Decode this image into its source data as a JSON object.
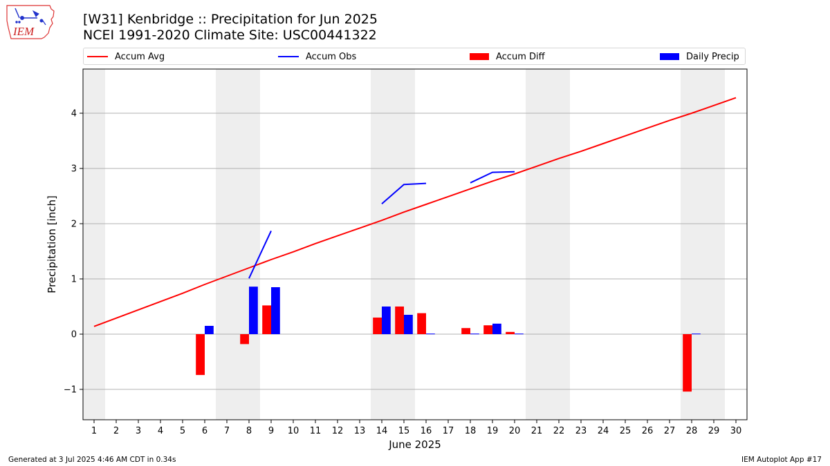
{
  "header": {
    "title_line1": "[W31] Kenbridge :: Precipitation for Jun 2025",
    "title_line2": "NCEI 1991-2020 Climate Site: USC00441322"
  },
  "logo": {
    "text": "IEM"
  },
  "legend": {
    "accum_avg": "Accum Avg",
    "accum_obs": "Accum Obs",
    "accum_diff": "Accum Diff",
    "daily_precip": "Daily Precip"
  },
  "footer": {
    "left": "Generated at 3 Jul 2025 4:46 AM CDT in 0.34s",
    "right": "IEM Autoplot App #17"
  },
  "colors": {
    "avg": "#ff0000",
    "obs": "#0000ff",
    "diff": "#ff0000",
    "daily": "#0000ff",
    "weekend_shade": "#eeeeee",
    "grid": "#b0b0b0"
  },
  "chart_data": {
    "type": "bar",
    "xlabel": "June 2025",
    "ylabel": "Precipitation [inch]",
    "xlim": [
      0.5,
      30.5
    ],
    "ylim": [
      -1.55,
      4.8
    ],
    "yticks": [
      -1,
      0,
      1,
      2,
      3,
      4
    ],
    "ytick_labels": [
      "−1",
      "0",
      "1",
      "2",
      "3",
      "4"
    ],
    "days": [
      1,
      2,
      3,
      4,
      5,
      6,
      7,
      8,
      9,
      10,
      11,
      12,
      13,
      14,
      15,
      16,
      17,
      18,
      19,
      20,
      21,
      22,
      23,
      24,
      25,
      26,
      27,
      28,
      29,
      30
    ],
    "weekend_days": [
      1,
      7,
      8,
      14,
      15,
      21,
      22,
      28,
      29
    ],
    "accum_avg": [
      0.14,
      0.29,
      0.44,
      0.59,
      0.74,
      0.9,
      1.05,
      1.2,
      1.35,
      1.49,
      1.64,
      1.78,
      1.92,
      2.06,
      2.21,
      2.35,
      2.49,
      2.63,
      2.77,
      2.9,
      3.04,
      3.18,
      3.31,
      3.45,
      3.59,
      3.73,
      3.87,
      4.0,
      4.14,
      4.28
    ],
    "accum_obs": [
      [
        [
          8,
          1.01
        ],
        [
          9,
          1.87
        ]
      ],
      [
        [
          14,
          2.36
        ],
        [
          15,
          2.71
        ],
        [
          16,
          2.73
        ]
      ],
      [
        [
          18,
          2.74
        ],
        [
          19,
          2.93
        ],
        [
          20,
          2.94
        ]
      ]
    ],
    "accum_diff": [
      {
        "day": 6,
        "value": -0.74
      },
      {
        "day": 8,
        "value": -0.18
      },
      {
        "day": 9,
        "value": 0.52
      },
      {
        "day": 14,
        "value": 0.3
      },
      {
        "day": 15,
        "value": 0.5
      },
      {
        "day": 16,
        "value": 0.38
      },
      {
        "day": 18,
        "value": 0.11
      },
      {
        "day": 19,
        "value": 0.16
      },
      {
        "day": 20,
        "value": 0.04
      },
      {
        "day": 28,
        "value": -1.04
      }
    ],
    "daily_precip": [
      {
        "day": 6,
        "value": 0.15
      },
      {
        "day": 8,
        "value": 0.86
      },
      {
        "day": 9,
        "value": 0.85
      },
      {
        "day": 14,
        "value": 0.5
      },
      {
        "day": 15,
        "value": 0.35
      },
      {
        "day": 16,
        "value": 0.01
      },
      {
        "day": 18,
        "value": 0.01
      },
      {
        "day": 19,
        "value": 0.19
      },
      {
        "day": 20,
        "value": 0.01
      },
      {
        "day": 28,
        "value": 0.01
      }
    ]
  }
}
